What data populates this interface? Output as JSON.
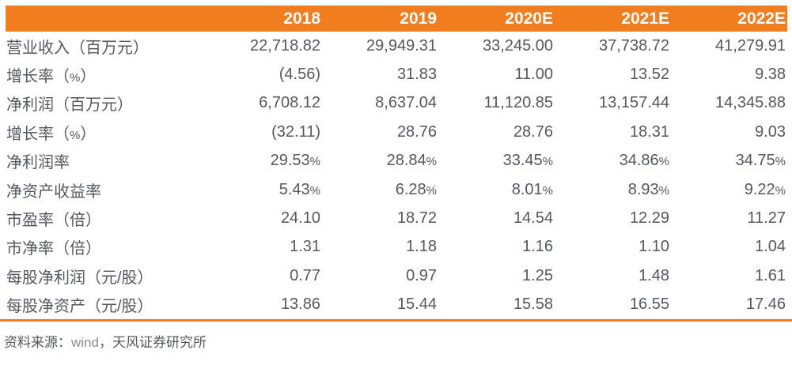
{
  "colors": {
    "accent": "#F07D20",
    "header_text": "#FFFFFF",
    "body_text": "#55585C",
    "muted_text": "#8C8C8C",
    "page_bg": "#FFFFFF"
  },
  "table": {
    "columns": [
      "",
      "2018",
      "2019",
      "2020E",
      "2021E",
      "2022E"
    ],
    "rows": [
      {
        "label": "营业收入（百万元）",
        "values": [
          "22,718.82",
          "29,949.31",
          "33,245.00",
          "37,738.72",
          "41,279.91"
        ]
      },
      {
        "label": "增长率（%）",
        "values": [
          "(4.56)",
          "31.83",
          "11.00",
          "13.52",
          "9.38"
        ]
      },
      {
        "label": "净利润（百万元）",
        "values": [
          "6,708.12",
          "8,637.04",
          "11,120.85",
          "13,157.44",
          "14,345.88"
        ]
      },
      {
        "label": "增长率（%）",
        "values": [
          "(32.11)",
          "28.76",
          "28.76",
          "18.31",
          "9.03"
        ]
      },
      {
        "label": "净利润率",
        "values": [
          "29.53%",
          "28.84%",
          "33.45%",
          "34.86%",
          "34.75%"
        ]
      },
      {
        "label": "净资产收益率",
        "values": [
          "5.43%",
          "6.28%",
          "8.01%",
          "8.93%",
          "9.22%"
        ]
      },
      {
        "label": "市盈率（倍）",
        "values": [
          "24.10",
          "18.72",
          "14.54",
          "12.29",
          "11.27"
        ]
      },
      {
        "label": "市净率（倍）",
        "values": [
          "1.31",
          "1.18",
          "1.16",
          "1.10",
          "1.04"
        ]
      },
      {
        "label": "每股净利润（元/股）",
        "values": [
          "0.77",
          "0.97",
          "1.25",
          "1.48",
          "1.61"
        ]
      },
      {
        "label": "每股净资产（元/股）",
        "values": [
          "13.86",
          "15.44",
          "15.58",
          "16.55",
          "17.46"
        ]
      }
    ]
  },
  "footer": {
    "source_label": "资料来源：",
    "source_wind": "wind",
    "source_rest": "，天风证券研究所"
  }
}
